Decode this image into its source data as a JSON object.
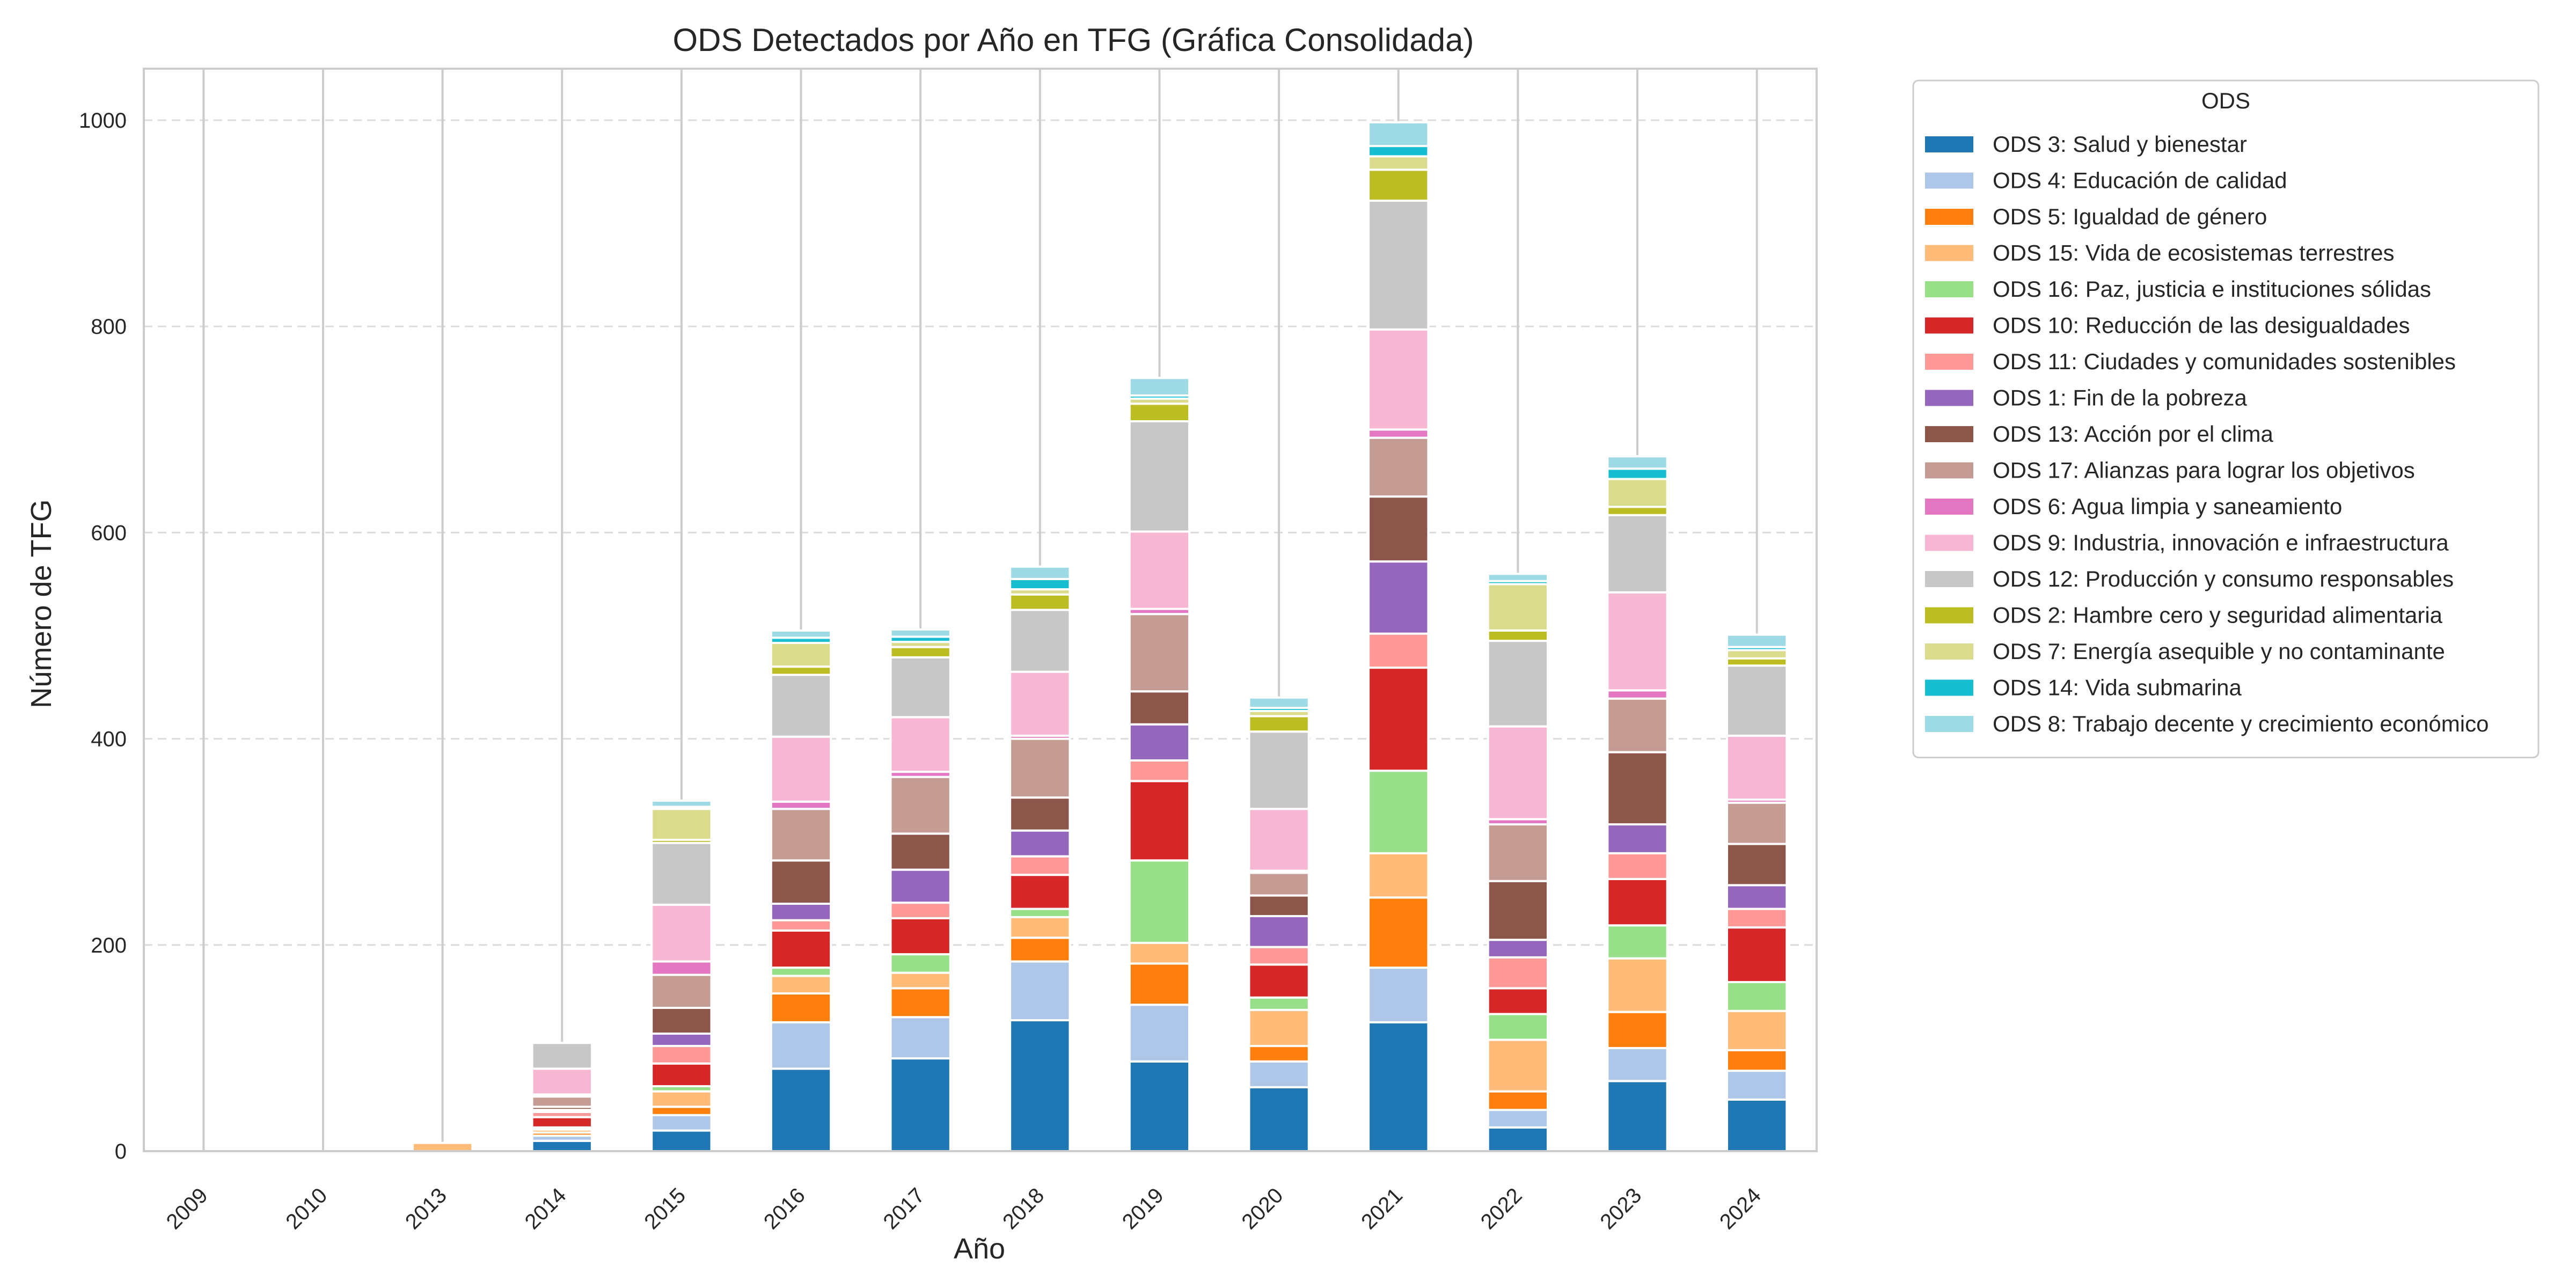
{
  "chart_data": {
    "type": "bar",
    "stacked": true,
    "title": "ODS Detectados por Año en TFG (Gráfica Consolidada)",
    "xlabel": "Año",
    "ylabel": "Número de TFG",
    "categories": [
      "2009",
      "2010",
      "2013",
      "2014",
      "2015",
      "2016",
      "2017",
      "2018",
      "2019",
      "2020",
      "2021",
      "2022",
      "2023",
      "2024"
    ],
    "ylim": [
      0,
      1050
    ],
    "yticks": [
      0,
      200,
      400,
      600,
      800,
      1000
    ],
    "grid": "y-dashed",
    "legend": {
      "title": "ODS",
      "placement": "outside-right"
    },
    "series": [
      {
        "name": "ODS 3: Salud y bienestar",
        "color": "#1f77b4",
        "values": [
          0,
          0,
          0,
          10,
          20,
          80,
          90,
          127,
          87,
          62,
          125,
          23,
          68,
          50
        ]
      },
      {
        "name": "ODS 4: Educación de calidad",
        "color": "#aec7e8",
        "values": [
          0,
          0,
          0,
          5,
          15,
          45,
          40,
          57,
          55,
          25,
          53,
          17,
          32,
          28
        ]
      },
      {
        "name": "ODS 5: Igualdad de género",
        "color": "#ff7f0e",
        "values": [
          0,
          0,
          0,
          3,
          8,
          28,
          28,
          23,
          40,
          15,
          68,
          18,
          35,
          20
        ]
      },
      {
        "name": "ODS 15: Vida de ecosistemas terrestres",
        "color": "#ffbb78",
        "values": [
          0,
          0,
          8,
          3,
          15,
          17,
          15,
          20,
          20,
          35,
          43,
          50,
          52,
          38
        ]
      },
      {
        "name": "ODS 16: Paz, justicia e instituciones sólidas",
        "color": "#98df8a",
        "values": [
          0,
          0,
          0,
          2,
          5,
          8,
          18,
          8,
          80,
          12,
          80,
          25,
          32,
          28
        ]
      },
      {
        "name": "ODS 10: Reducción de las desigualdades",
        "color": "#d62728",
        "values": [
          0,
          0,
          0,
          10,
          22,
          36,
          35,
          33,
          77,
          32,
          100,
          25,
          45,
          53
        ]
      },
      {
        "name": "ODS 11: Ciudades y comunidades sostenibles",
        "color": "#ff9896",
        "values": [
          0,
          0,
          0,
          5,
          17,
          10,
          15,
          18,
          20,
          17,
          33,
          30,
          25,
          18
        ]
      },
      {
        "name": "ODS 1: Fin de la pobreza",
        "color": "#9467bd",
        "values": [
          0,
          0,
          0,
          2,
          12,
          16,
          32,
          25,
          35,
          30,
          70,
          17,
          28,
          23
        ]
      },
      {
        "name": "ODS 13: Acción por el clima",
        "color": "#8c564b",
        "values": [
          0,
          0,
          0,
          3,
          25,
          42,
          35,
          32,
          32,
          20,
          63,
          57,
          70,
          40
        ]
      },
      {
        "name": "ODS 17: Alianzas para lograr los objetivos",
        "color": "#c49c94",
        "values": [
          0,
          0,
          0,
          10,
          32,
          50,
          55,
          57,
          75,
          22,
          57,
          55,
          52,
          40
        ]
      },
      {
        "name": "ODS 6: Agua limpia y saneamiento",
        "color": "#e377c2",
        "values": [
          0,
          0,
          0,
          2,
          13,
          7,
          5,
          3,
          5,
          2,
          8,
          5,
          8,
          3
        ]
      },
      {
        "name": "ODS 9: Industria, innovación e infraestructura",
        "color": "#f7b6d2",
        "values": [
          0,
          0,
          0,
          25,
          55,
          63,
          53,
          62,
          75,
          60,
          97,
          90,
          95,
          62
        ]
      },
      {
        "name": "ODS 12: Producción y consumo responsables",
        "color": "#c7c7c7",
        "values": [
          0,
          0,
          0,
          25,
          60,
          60,
          58,
          60,
          107,
          75,
          125,
          83,
          75,
          68
        ]
      },
      {
        "name": "ODS 2: Hambre cero y seguridad alimentaria",
        "color": "#bcbd22",
        "values": [
          0,
          0,
          0,
          0,
          3,
          8,
          10,
          15,
          17,
          15,
          30,
          10,
          8,
          7
        ]
      },
      {
        "name": "ODS 7: Energía asequible y no contaminante",
        "color": "#dbdb8d",
        "values": [
          0,
          0,
          0,
          0,
          30,
          23,
          5,
          5,
          5,
          5,
          13,
          45,
          27,
          8
        ]
      },
      {
        "name": "ODS 14: Vida submarina",
        "color": "#17becf",
        "values": [
          0,
          0,
          0,
          0,
          2,
          5,
          5,
          10,
          3,
          3,
          10,
          3,
          10,
          3
        ]
      },
      {
        "name": "ODS 8: Trabajo decente y crecimiento económico",
        "color": "#9edae5",
        "values": [
          0,
          0,
          0,
          0,
          6,
          7,
          7,
          12,
          17,
          10,
          23,
          7,
          12,
          12
        ]
      }
    ]
  }
}
